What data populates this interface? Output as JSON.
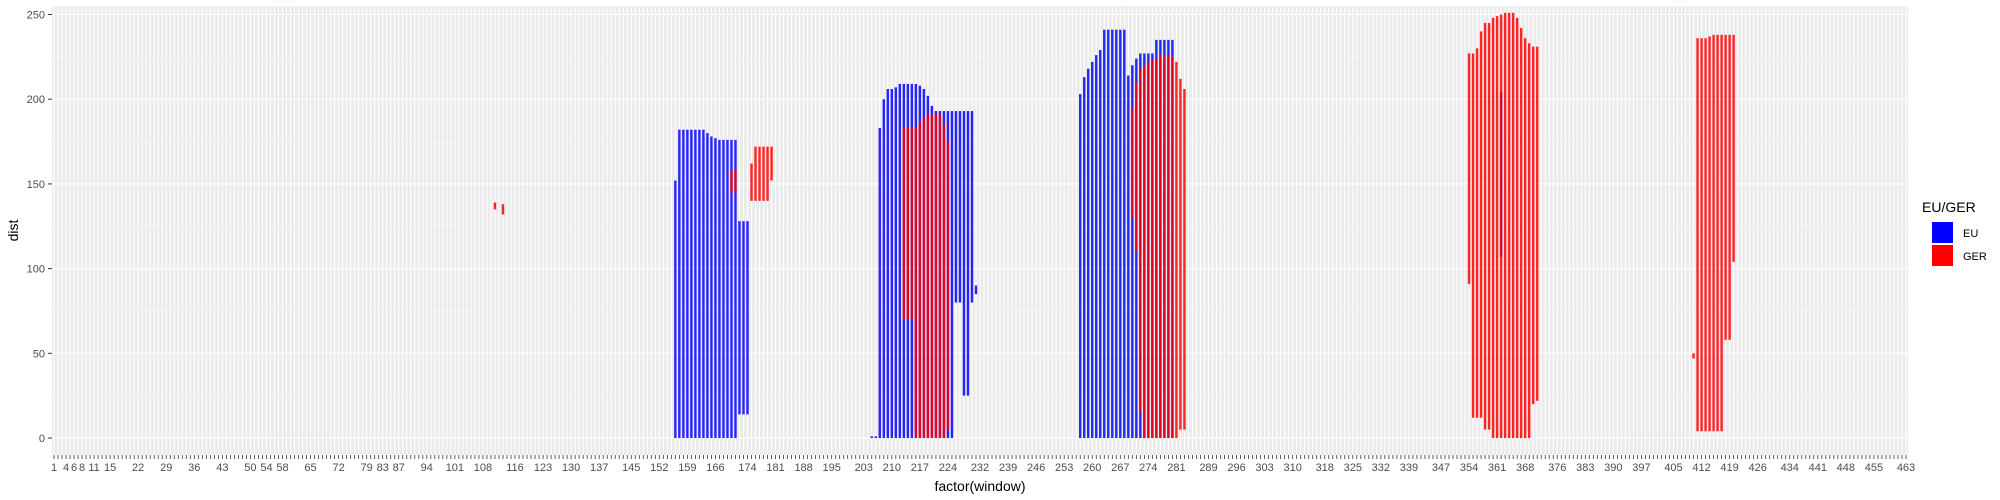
{
  "chart_data": {
    "type": "bar",
    "title": "",
    "xlabel": "factor(window)",
    "ylabel": "dist",
    "ylim": [
      -10,
      255
    ],
    "y_ticks": [
      0,
      50,
      100,
      150,
      200,
      250
    ],
    "x_range": [
      1,
      463
    ],
    "x_tick_labels": [
      "1",
      "4",
      "6",
      "8",
      "11",
      "15",
      "22",
      "29",
      "36",
      "43",
      "50",
      "54",
      "58",
      "65",
      "72",
      "79",
      "83",
      "87",
      "94",
      "101",
      "108",
      "116",
      "123",
      "130",
      "137",
      "145",
      "152",
      "159",
      "166",
      "174",
      "181",
      "188",
      "195",
      "203",
      "210",
      "217",
      "224",
      "232",
      "239",
      "246",
      "253",
      "260",
      "267",
      "274",
      "281",
      "289",
      "296",
      "303",
      "310",
      "318",
      "325",
      "332",
      "339",
      "347",
      "354",
      "361",
      "368",
      "376",
      "383",
      "390",
      "397",
      "405",
      "412",
      "419",
      "426",
      "434",
      "441",
      "448",
      "455",
      "463"
    ],
    "grid": true,
    "legend": {
      "title": "EU/GER",
      "position": "right",
      "entries": [
        {
          "name": "EU",
          "color": "#0000FF"
        },
        {
          "name": "GER",
          "color": "#FF0000"
        }
      ]
    },
    "series": [
      {
        "name": "EU",
        "color": "#0000FF",
        "bars": [
          {
            "x": 156,
            "ymin": 0,
            "ymax": 152
          },
          {
            "x": 157,
            "ymin": 0,
            "ymax": 182
          },
          {
            "x": 158,
            "ymin": 0,
            "ymax": 182
          },
          {
            "x": 159,
            "ymin": 0,
            "ymax": 182
          },
          {
            "x": 160,
            "ymin": 0,
            "ymax": 182
          },
          {
            "x": 161,
            "ymin": 0,
            "ymax": 182
          },
          {
            "x": 162,
            "ymin": 0,
            "ymax": 182
          },
          {
            "x": 163,
            "ymin": 0,
            "ymax": 182
          },
          {
            "x": 164,
            "ymin": 0,
            "ymax": 180
          },
          {
            "x": 165,
            "ymin": 0,
            "ymax": 178
          },
          {
            "x": 166,
            "ymin": 0,
            "ymax": 177
          },
          {
            "x": 167,
            "ymin": 0,
            "ymax": 176
          },
          {
            "x": 168,
            "ymin": 0,
            "ymax": 176
          },
          {
            "x": 169,
            "ymin": 0,
            "ymax": 176
          },
          {
            "x": 170,
            "ymin": 0,
            "ymax": 176
          },
          {
            "x": 171,
            "ymin": 0,
            "ymax": 176
          },
          {
            "x": 172,
            "ymin": 14,
            "ymax": 128
          },
          {
            "x": 173,
            "ymin": 14,
            "ymax": 128
          },
          {
            "x": 174,
            "ymin": 14,
            "ymax": 128
          },
          {
            "x": 205,
            "ymin": 0,
            "ymax": 1
          },
          {
            "x": 206,
            "ymin": 0,
            "ymax": 1
          },
          {
            "x": 207,
            "ymin": 0,
            "ymax": 183
          },
          {
            "x": 208,
            "ymin": 0,
            "ymax": 200
          },
          {
            "x": 209,
            "ymin": 0,
            "ymax": 206
          },
          {
            "x": 210,
            "ymin": 0,
            "ymax": 206
          },
          {
            "x": 211,
            "ymin": 0,
            "ymax": 207
          },
          {
            "x": 212,
            "ymin": 0,
            "ymax": 209
          },
          {
            "x": 213,
            "ymin": 0,
            "ymax": 209
          },
          {
            "x": 214,
            "ymin": 0,
            "ymax": 209
          },
          {
            "x": 215,
            "ymin": 0,
            "ymax": 209
          },
          {
            "x": 216,
            "ymin": 0,
            "ymax": 209
          },
          {
            "x": 217,
            "ymin": 0,
            "ymax": 208
          },
          {
            "x": 218,
            "ymin": 0,
            "ymax": 206
          },
          {
            "x": 219,
            "ymin": 0,
            "ymax": 202
          },
          {
            "x": 220,
            "ymin": 0,
            "ymax": 196
          },
          {
            "x": 221,
            "ymin": 0,
            "ymax": 193
          },
          {
            "x": 222,
            "ymin": 0,
            "ymax": 193
          },
          {
            "x": 223,
            "ymin": 0,
            "ymax": 193
          },
          {
            "x": 224,
            "ymin": 0,
            "ymax": 193
          },
          {
            "x": 225,
            "ymin": 0,
            "ymax": 193
          },
          {
            "x": 226,
            "ymin": 80,
            "ymax": 193
          },
          {
            "x": 227,
            "ymin": 80,
            "ymax": 193
          },
          {
            "x": 228,
            "ymin": 25,
            "ymax": 193
          },
          {
            "x": 229,
            "ymin": 25,
            "ymax": 193
          },
          {
            "x": 230,
            "ymin": 80,
            "ymax": 193
          },
          {
            "x": 231,
            "ymin": 85,
            "ymax": 90
          },
          {
            "x": 257,
            "ymin": 0,
            "ymax": 203
          },
          {
            "x": 258,
            "ymin": 0,
            "ymax": 213
          },
          {
            "x": 259,
            "ymin": 0,
            "ymax": 218
          },
          {
            "x": 260,
            "ymin": 0,
            "ymax": 222
          },
          {
            "x": 261,
            "ymin": 0,
            "ymax": 226
          },
          {
            "x": 262,
            "ymin": 0,
            "ymax": 229
          },
          {
            "x": 263,
            "ymin": 0,
            "ymax": 241
          },
          {
            "x": 264,
            "ymin": 0,
            "ymax": 241
          },
          {
            "x": 265,
            "ymin": 0,
            "ymax": 241
          },
          {
            "x": 266,
            "ymin": 0,
            "ymax": 241
          },
          {
            "x": 267,
            "ymin": 0,
            "ymax": 241
          },
          {
            "x": 268,
            "ymin": 0,
            "ymax": 241
          },
          {
            "x": 269,
            "ymin": 0,
            "ymax": 214
          },
          {
            "x": 270,
            "ymin": 0,
            "ymax": 220
          },
          {
            "x": 271,
            "ymin": 0,
            "ymax": 224
          },
          {
            "x": 272,
            "ymin": 0,
            "ymax": 227
          },
          {
            "x": 273,
            "ymin": 0,
            "ymax": 227
          },
          {
            "x": 274,
            "ymin": 0,
            "ymax": 227
          },
          {
            "x": 275,
            "ymin": 0,
            "ymax": 227
          },
          {
            "x": 276,
            "ymin": 0,
            "ymax": 235
          },
          {
            "x": 277,
            "ymin": 0,
            "ymax": 235
          },
          {
            "x": 278,
            "ymin": 0,
            "ymax": 235
          },
          {
            "x": 279,
            "ymin": 0,
            "ymax": 235
          },
          {
            "x": 280,
            "ymin": 0,
            "ymax": 235
          },
          {
            "x": 362,
            "ymin": 107,
            "ymax": 204
          }
        ]
      },
      {
        "name": "GER",
        "color": "#FF0000",
        "bars": [
          {
            "x": 111,
            "ymin": 135,
            "ymax": 139
          },
          {
            "x": 113,
            "ymin": 132,
            "ymax": 138
          },
          {
            "x": 170,
            "ymin": 145,
            "ymax": 158
          },
          {
            "x": 171,
            "ymin": 145,
            "ymax": 158
          },
          {
            "x": 175,
            "ymin": 140,
            "ymax": 162
          },
          {
            "x": 176,
            "ymin": 140,
            "ymax": 172
          },
          {
            "x": 177,
            "ymin": 140,
            "ymax": 172
          },
          {
            "x": 178,
            "ymin": 140,
            "ymax": 172
          },
          {
            "x": 179,
            "ymin": 140,
            "ymax": 172
          },
          {
            "x": 180,
            "ymin": 152,
            "ymax": 172
          },
          {
            "x": 213,
            "ymin": 70,
            "ymax": 183
          },
          {
            "x": 214,
            "ymin": 70,
            "ymax": 183
          },
          {
            "x": 215,
            "ymin": 70,
            "ymax": 183
          },
          {
            "x": 216,
            "ymin": 0,
            "ymax": 183
          },
          {
            "x": 217,
            "ymin": 0,
            "ymax": 186
          },
          {
            "x": 218,
            "ymin": 0,
            "ymax": 189
          },
          {
            "x": 219,
            "ymin": 0,
            "ymax": 191
          },
          {
            "x": 220,
            "ymin": 0,
            "ymax": 191
          },
          {
            "x": 221,
            "ymin": 0,
            "ymax": 191
          },
          {
            "x": 222,
            "ymin": 0,
            "ymax": 191
          },
          {
            "x": 223,
            "ymin": 0,
            "ymax": 185
          },
          {
            "x": 224,
            "ymin": 5,
            "ymax": 175
          },
          {
            "x": 270,
            "ymin": 130,
            "ymax": 195
          },
          {
            "x": 271,
            "ymin": 110,
            "ymax": 210
          },
          {
            "x": 272,
            "ymin": 15,
            "ymax": 218
          },
          {
            "x": 273,
            "ymin": 0,
            "ymax": 220
          },
          {
            "x": 274,
            "ymin": 0,
            "ymax": 222
          },
          {
            "x": 275,
            "ymin": 0,
            "ymax": 223
          },
          {
            "x": 276,
            "ymin": 0,
            "ymax": 224
          },
          {
            "x": 277,
            "ymin": 0,
            "ymax": 226
          },
          {
            "x": 278,
            "ymin": 0,
            "ymax": 226
          },
          {
            "x": 279,
            "ymin": 0,
            "ymax": 226
          },
          {
            "x": 280,
            "ymin": 0,
            "ymax": 225
          },
          {
            "x": 281,
            "ymin": 0,
            "ymax": 222
          },
          {
            "x": 282,
            "ymin": 5,
            "ymax": 212
          },
          {
            "x": 283,
            "ymin": 5,
            "ymax": 206
          },
          {
            "x": 354,
            "ymin": 91,
            "ymax": 227
          },
          {
            "x": 355,
            "ymin": 12,
            "ymax": 227
          },
          {
            "x": 356,
            "ymin": 12,
            "ymax": 230
          },
          {
            "x": 357,
            "ymin": 12,
            "ymax": 240
          },
          {
            "x": 358,
            "ymin": 5,
            "ymax": 245
          },
          {
            "x": 359,
            "ymin": 5,
            "ymax": 245
          },
          {
            "x": 360,
            "ymin": 0,
            "ymax": 248
          },
          {
            "x": 361,
            "ymin": 0,
            "ymax": 249
          },
          {
            "x": 362,
            "ymin": 0,
            "ymax": 250
          },
          {
            "x": 363,
            "ymin": 0,
            "ymax": 251
          },
          {
            "x": 364,
            "ymin": 0,
            "ymax": 251
          },
          {
            "x": 365,
            "ymin": 0,
            "ymax": 251
          },
          {
            "x": 366,
            "ymin": 0,
            "ymax": 248
          },
          {
            "x": 367,
            "ymin": 0,
            "ymax": 242
          },
          {
            "x": 368,
            "ymin": 0,
            "ymax": 236
          },
          {
            "x": 369,
            "ymin": 0,
            "ymax": 233
          },
          {
            "x": 370,
            "ymin": 20,
            "ymax": 231
          },
          {
            "x": 371,
            "ymin": 22,
            "ymax": 231
          },
          {
            "x": 410,
            "ymin": 47,
            "ymax": 50
          },
          {
            "x": 411,
            "ymin": 4,
            "ymax": 236
          },
          {
            "x": 412,
            "ymin": 4,
            "ymax": 236
          },
          {
            "x": 413,
            "ymin": 4,
            "ymax": 236
          },
          {
            "x": 414,
            "ymin": 4,
            "ymax": 237
          },
          {
            "x": 415,
            "ymin": 4,
            "ymax": 238
          },
          {
            "x": 416,
            "ymin": 4,
            "ymax": 238
          },
          {
            "x": 417,
            "ymin": 4,
            "ymax": 238
          },
          {
            "x": 418,
            "ymin": 58,
            "ymax": 238
          },
          {
            "x": 419,
            "ymin": 58,
            "ymax": 238
          },
          {
            "x": 420,
            "ymin": 104,
            "ymax": 238
          }
        ]
      }
    ]
  }
}
